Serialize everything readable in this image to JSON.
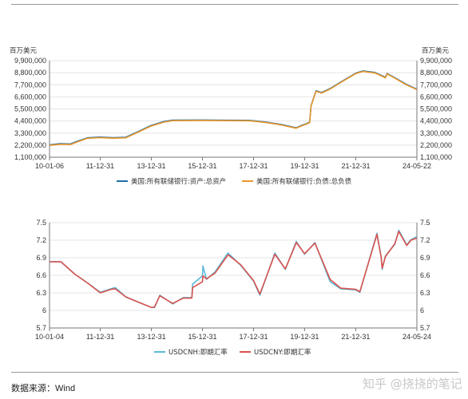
{
  "source_label": "数据来源：Wind",
  "watermark": "知乎 @挠挠的笔记",
  "chart_data": [
    {
      "type": "line",
      "unit_left": "百万美元",
      "unit_right": "百万美元",
      "ylim": [
        1100000,
        9900000
      ],
      "yticks": [
        "9,900,000",
        "8,800,000",
        "7,700,000",
        "6,600,000",
        "5,500,000",
        "4,400,000",
        "3,300,000",
        "2,200,000",
        "1,100,000"
      ],
      "xlim": [
        "2010-01-06",
        "2024-05-22"
      ],
      "xticks": [
        {
          "date": "2010-01-06",
          "label": "10-01-06"
        },
        {
          "date": "2011-12-31",
          "label": "11-12-31"
        },
        {
          "date": "2013-12-31",
          "label": "13-12-31"
        },
        {
          "date": "2015-12-31",
          "label": "15-12-31"
        },
        {
          "date": "2017-12-31",
          "label": "17-12-31"
        },
        {
          "date": "2019-12-31",
          "label": "19-12-31"
        },
        {
          "date": "2021-12-31",
          "label": "21-12-31"
        },
        {
          "date": "2024-05-22",
          "label": "24-05-22"
        }
      ],
      "series": [
        {
          "name": "美国:所有联储银行:资产:总资产",
          "color": "#1f6fa8",
          "points": [
            [
              "2010-01-06",
              2230000
            ],
            [
              "2010-06-01",
              2330000
            ],
            [
              "2010-11-01",
              2310000
            ],
            [
              "2011-03-01",
              2600000
            ],
            [
              "2011-06-30",
              2870000
            ],
            [
              "2011-12-31",
              2930000
            ],
            [
              "2012-06-30",
              2880000
            ],
            [
              "2012-12-31",
              2920000
            ],
            [
              "2013-06-30",
              3450000
            ],
            [
              "2013-12-31",
              4000000
            ],
            [
              "2014-06-30",
              4350000
            ],
            [
              "2014-10-31",
              4480000
            ],
            [
              "2015-12-31",
              4490000
            ],
            [
              "2016-12-31",
              4470000
            ],
            [
              "2017-10-31",
              4460000
            ],
            [
              "2018-06-30",
              4300000
            ],
            [
              "2019-01-31",
              4080000
            ],
            [
              "2019-08-31",
              3780000
            ],
            [
              "2019-10-31",
              3950000
            ],
            [
              "2020-01-31",
              4170000
            ],
            [
              "2020-03-11",
              4300000
            ],
            [
              "2020-04-01",
              5800000
            ],
            [
              "2020-06-10",
              7150000
            ],
            [
              "2020-08-31",
              6990000
            ],
            [
              "2020-12-31",
              7360000
            ],
            [
              "2021-06-30",
              8070000
            ],
            [
              "2021-12-31",
              8760000
            ],
            [
              "2022-04-13",
              8960000
            ],
            [
              "2022-09-30",
              8820000
            ],
            [
              "2023-02-28",
              8380000
            ],
            [
              "2023-03-22",
              8730000
            ],
            [
              "2023-06-30",
              8390000
            ],
            [
              "2023-12-31",
              7710000
            ],
            [
              "2024-05-22",
              7300000
            ]
          ]
        },
        {
          "name": "美国:所有联储银行:负债:总负债",
          "color": "#e8962a",
          "points": [
            [
              "2010-01-06",
              2180000
            ],
            [
              "2010-06-01",
              2280000
            ],
            [
              "2010-11-01",
              2260000
            ],
            [
              "2011-03-01",
              2550000
            ],
            [
              "2011-06-30",
              2820000
            ],
            [
              "2011-12-31",
              2880000
            ],
            [
              "2012-06-30",
              2830000
            ],
            [
              "2012-12-31",
              2870000
            ],
            [
              "2013-06-30",
              3400000
            ],
            [
              "2013-12-31",
              3950000
            ],
            [
              "2014-06-30",
              4300000
            ],
            [
              "2014-10-31",
              4430000
            ],
            [
              "2015-12-31",
              4450000
            ],
            [
              "2016-12-31",
              4430000
            ],
            [
              "2017-10-31",
              4420000
            ],
            [
              "2018-06-30",
              4260000
            ],
            [
              "2019-01-31",
              4040000
            ],
            [
              "2019-08-31",
              3740000
            ],
            [
              "2019-10-31",
              3910000
            ],
            [
              "2020-01-31",
              4130000
            ],
            [
              "2020-03-11",
              4260000
            ],
            [
              "2020-04-01",
              5760000
            ],
            [
              "2020-06-10",
              7110000
            ],
            [
              "2020-08-31",
              6950000
            ],
            [
              "2020-12-31",
              7320000
            ],
            [
              "2021-06-30",
              8030000
            ],
            [
              "2021-12-31",
              8720000
            ],
            [
              "2022-04-13",
              8920000
            ],
            [
              "2022-09-30",
              8780000
            ],
            [
              "2023-02-28",
              8340000
            ],
            [
              "2023-03-22",
              8690000
            ],
            [
              "2023-06-30",
              8350000
            ],
            [
              "2023-12-31",
              7670000
            ],
            [
              "2024-05-22",
              7260000
            ]
          ]
        }
      ]
    },
    {
      "type": "line",
      "ylim": [
        5.7,
        7.5
      ],
      "yticks": [
        "7.5",
        "7.2",
        "6.9",
        "6.6",
        "6.3",
        "6",
        "5.7"
      ],
      "xlim": [
        "2010-01-04",
        "2024-05-24"
      ],
      "xticks": [
        {
          "date": "2010-01-04",
          "label": "10-01-04"
        },
        {
          "date": "2011-12-31",
          "label": "11-12-31"
        },
        {
          "date": "2013-12-31",
          "label": "13-12-31"
        },
        {
          "date": "2015-12-31",
          "label": "15-12-31"
        },
        {
          "date": "2017-12-31",
          "label": "17-12-31"
        },
        {
          "date": "2019-12-31",
          "label": "19-12-31"
        },
        {
          "date": "2021-12-31",
          "label": "21-12-31"
        },
        {
          "date": "2024-05-24",
          "label": "24-05-24"
        }
      ],
      "series": [
        {
          "name": "USDCNH:即期汇率",
          "color": "#5bb8d8",
          "points": [
            [
              "2010-01-04",
              6.83
            ],
            [
              "2010-06-18",
              6.83
            ],
            [
              "2010-12-31",
              6.62
            ],
            [
              "2011-06-30",
              6.47
            ],
            [
              "2011-12-31",
              6.31
            ],
            [
              "2012-05-31",
              6.37
            ],
            [
              "2012-07-31",
              6.39
            ],
            [
              "2012-12-31",
              6.23
            ],
            [
              "2013-06-30",
              6.14
            ],
            [
              "2013-12-31",
              6.05
            ],
            [
              "2014-02-14",
              6.05
            ],
            [
              "2014-04-30",
              6.26
            ],
            [
              "2014-10-31",
              6.11
            ],
            [
              "2015-03-31",
              6.22
            ],
            [
              "2015-08-01",
              6.22
            ],
            [
              "2015-08-13",
              6.45
            ],
            [
              "2015-12-31",
              6.59
            ],
            [
              "2016-01-07",
              6.76
            ],
            [
              "2016-02-28",
              6.53
            ],
            [
              "2016-06-30",
              6.66
            ],
            [
              "2016-12-31",
              6.98
            ],
            [
              "2017-06-30",
              6.77
            ],
            [
              "2017-12-31",
              6.5
            ],
            [
              "2018-03-31",
              6.26
            ],
            [
              "2018-10-31",
              6.98
            ],
            [
              "2019-03-31",
              6.7
            ],
            [
              "2019-09-03",
              7.18
            ],
            [
              "2019-12-31",
              6.96
            ],
            [
              "2020-05-27",
              7.16
            ],
            [
              "2020-12-31",
              6.49
            ],
            [
              "2021-05-31",
              6.37
            ],
            [
              "2021-12-31",
              6.35
            ],
            [
              "2022-03-01",
              6.31
            ],
            [
              "2022-10-31",
              7.32
            ],
            [
              "2022-12-31",
              6.9
            ],
            [
              "2023-01-13",
              6.7
            ],
            [
              "2023-03-01",
              6.93
            ],
            [
              "2023-07-14",
              7.13
            ],
            [
              "2023-09-08",
              7.37
            ],
            [
              "2023-12-31",
              7.12
            ],
            [
              "2024-02-29",
              7.21
            ],
            [
              "2024-05-24",
              7.26
            ]
          ]
        },
        {
          "name": "USDCNY:即期汇率",
          "color": "#d9534f",
          "points": [
            [
              "2010-01-04",
              6.83
            ],
            [
              "2010-06-18",
              6.83
            ],
            [
              "2010-12-31",
              6.62
            ],
            [
              "2011-06-30",
              6.47
            ],
            [
              "2011-12-31",
              6.3
            ],
            [
              "2012-05-31",
              6.36
            ],
            [
              "2012-07-31",
              6.37
            ],
            [
              "2012-12-31",
              6.23
            ],
            [
              "2013-06-30",
              6.14
            ],
            [
              "2013-12-31",
              6.05
            ],
            [
              "2014-02-14",
              6.06
            ],
            [
              "2014-04-30",
              6.25
            ],
            [
              "2014-10-31",
              6.12
            ],
            [
              "2015-03-31",
              6.21
            ],
            [
              "2015-08-01",
              6.21
            ],
            [
              "2015-08-13",
              6.39
            ],
            [
              "2015-12-31",
              6.49
            ],
            [
              "2016-01-07",
              6.59
            ],
            [
              "2016-02-28",
              6.54
            ],
            [
              "2016-06-30",
              6.64
            ],
            [
              "2016-12-31",
              6.95
            ],
            [
              "2017-06-30",
              6.78
            ],
            [
              "2017-12-31",
              6.51
            ],
            [
              "2018-03-31",
              6.28
            ],
            [
              "2018-10-31",
              6.96
            ],
            [
              "2019-03-31",
              6.71
            ],
            [
              "2019-09-03",
              7.16
            ],
            [
              "2019-12-31",
              6.97
            ],
            [
              "2020-05-27",
              7.15
            ],
            [
              "2020-12-31",
              6.53
            ],
            [
              "2021-05-31",
              6.38
            ],
            [
              "2021-12-31",
              6.36
            ],
            [
              "2022-03-01",
              6.32
            ],
            [
              "2022-10-31",
              7.3
            ],
            [
              "2022-12-31",
              6.91
            ],
            [
              "2023-01-13",
              6.72
            ],
            [
              "2023-03-01",
              6.92
            ],
            [
              "2023-07-14",
              7.14
            ],
            [
              "2023-09-08",
              7.35
            ],
            [
              "2023-12-31",
              7.11
            ],
            [
              "2024-02-29",
              7.2
            ],
            [
              "2024-05-24",
              7.24
            ]
          ]
        }
      ]
    }
  ]
}
